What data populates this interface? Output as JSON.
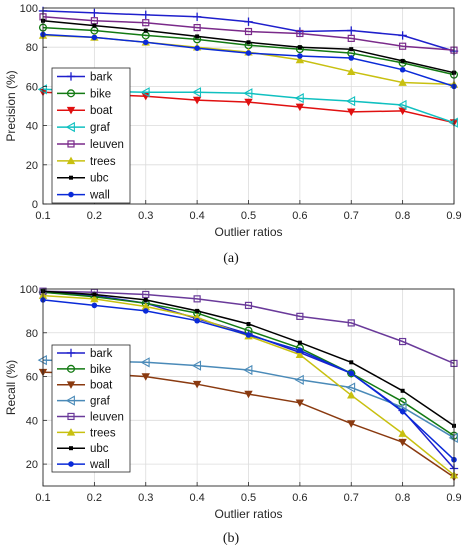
{
  "chart_data": [
    {
      "type": "line",
      "caption": "(a)",
      "xlabel": "Outlier ratios",
      "ylabel": "Precision (%)",
      "x": [
        0.1,
        0.2,
        0.3,
        0.4,
        0.5,
        0.6,
        0.7,
        0.8,
        0.9
      ],
      "xlim": [
        0.1,
        0.9
      ],
      "ylim": [
        0,
        100
      ],
      "yticks": [
        0,
        20,
        40,
        60,
        80,
        100
      ],
      "grid": true,
      "legend_position": "center-left",
      "series": [
        {
          "name": "bark",
          "color": "#1f1fcc",
          "marker": "plus",
          "values": [
            98.5,
            97.5,
            96.5,
            95.5,
            93,
            88,
            88.5,
            86,
            78
          ]
        },
        {
          "name": "bike",
          "color": "#137a13",
          "marker": "circle",
          "values": [
            90,
            88.5,
            86,
            84,
            81,
            79,
            77,
            72,
            66
          ]
        },
        {
          "name": "boat",
          "color": "#e01010",
          "marker": "tri-down",
          "values": [
            57,
            56,
            55,
            53,
            52,
            49.5,
            47,
            47.5,
            41.5
          ]
        },
        {
          "name": "graf",
          "color": "#10c0c0",
          "marker": "tri-left",
          "values": [
            58.5,
            57.5,
            57,
            57,
            56.5,
            54,
            52.5,
            50.5,
            41.5
          ]
        },
        {
          "name": "leuven",
          "color": "#7a2a8a",
          "marker": "square",
          "values": [
            95.5,
            93.5,
            92.5,
            90,
            88,
            87,
            84.5,
            80.5,
            78.5
          ]
        },
        {
          "name": "trees",
          "color": "#c8c010",
          "marker": "tri-up",
          "values": [
            86,
            85,
            82.5,
            80,
            77.5,
            73.5,
            67.5,
            62,
            61
          ]
        },
        {
          "name": "ubc",
          "color": "#000000",
          "marker": "point",
          "values": [
            93.5,
            91,
            88.5,
            85.5,
            82.5,
            80,
            79,
            73,
            67
          ]
        },
        {
          "name": "wall",
          "color": "#0a2ad8",
          "marker": "dot",
          "values": [
            86.5,
            85,
            82.5,
            79.5,
            77,
            75.5,
            74.5,
            68.5,
            60
          ]
        }
      ]
    },
    {
      "type": "line",
      "caption": "(b)",
      "xlabel": "Outlier ratios",
      "ylabel": "Recall (%)",
      "x": [
        0.1,
        0.2,
        0.3,
        0.4,
        0.5,
        0.6,
        0.7,
        0.8,
        0.9
      ],
      "xlim": [
        0.1,
        0.9
      ],
      "ylim": [
        10,
        100
      ],
      "yticks": [
        20,
        40,
        60,
        80,
        100
      ],
      "grid": true,
      "legend_position": "lower-left",
      "series": [
        {
          "name": "bark",
          "color": "#1f1fcc",
          "marker": "plus",
          "values": [
            98.5,
            97,
            93.5,
            86.5,
            79.5,
            71,
            61.5,
            44.5,
            18
          ]
        },
        {
          "name": "bike",
          "color": "#137a13",
          "marker": "circle",
          "values": [
            98.5,
            96.5,
            93.5,
            89,
            81,
            73,
            61.5,
            48.5,
            33
          ]
        },
        {
          "name": "boat",
          "color": "#8a3a10",
          "marker": "tri-down",
          "values": [
            62,
            61.5,
            60,
            56.5,
            52,
            48,
            38.5,
            30,
            14
          ]
        },
        {
          "name": "graf",
          "color": "#4a8ab8",
          "marker": "tri-left",
          "values": [
            67.5,
            67,
            66.5,
            65,
            63,
            58.5,
            55,
            46,
            32
          ]
        },
        {
          "name": "leuven",
          "color": "#6a3a9a",
          "marker": "square",
          "values": [
            99,
            98.5,
            97.5,
            95.5,
            92.5,
            87.5,
            84.5,
            76,
            66
          ]
        },
        {
          "name": "trees",
          "color": "#c8c010",
          "marker": "tri-up",
          "values": [
            97,
            95.5,
            92,
            87,
            78.5,
            70,
            51.5,
            34,
            15
          ]
        },
        {
          "name": "ubc",
          "color": "#000000",
          "marker": "point",
          "values": [
            99,
            97.5,
            95,
            90,
            84,
            75.5,
            66.5,
            53.5,
            37.5
          ]
        },
        {
          "name": "wall",
          "color": "#0a2ad8",
          "marker": "dot",
          "values": [
            95,
            92.5,
            90,
            85.5,
            79,
            72,
            61.5,
            44,
            22
          ]
        }
      ]
    }
  ]
}
